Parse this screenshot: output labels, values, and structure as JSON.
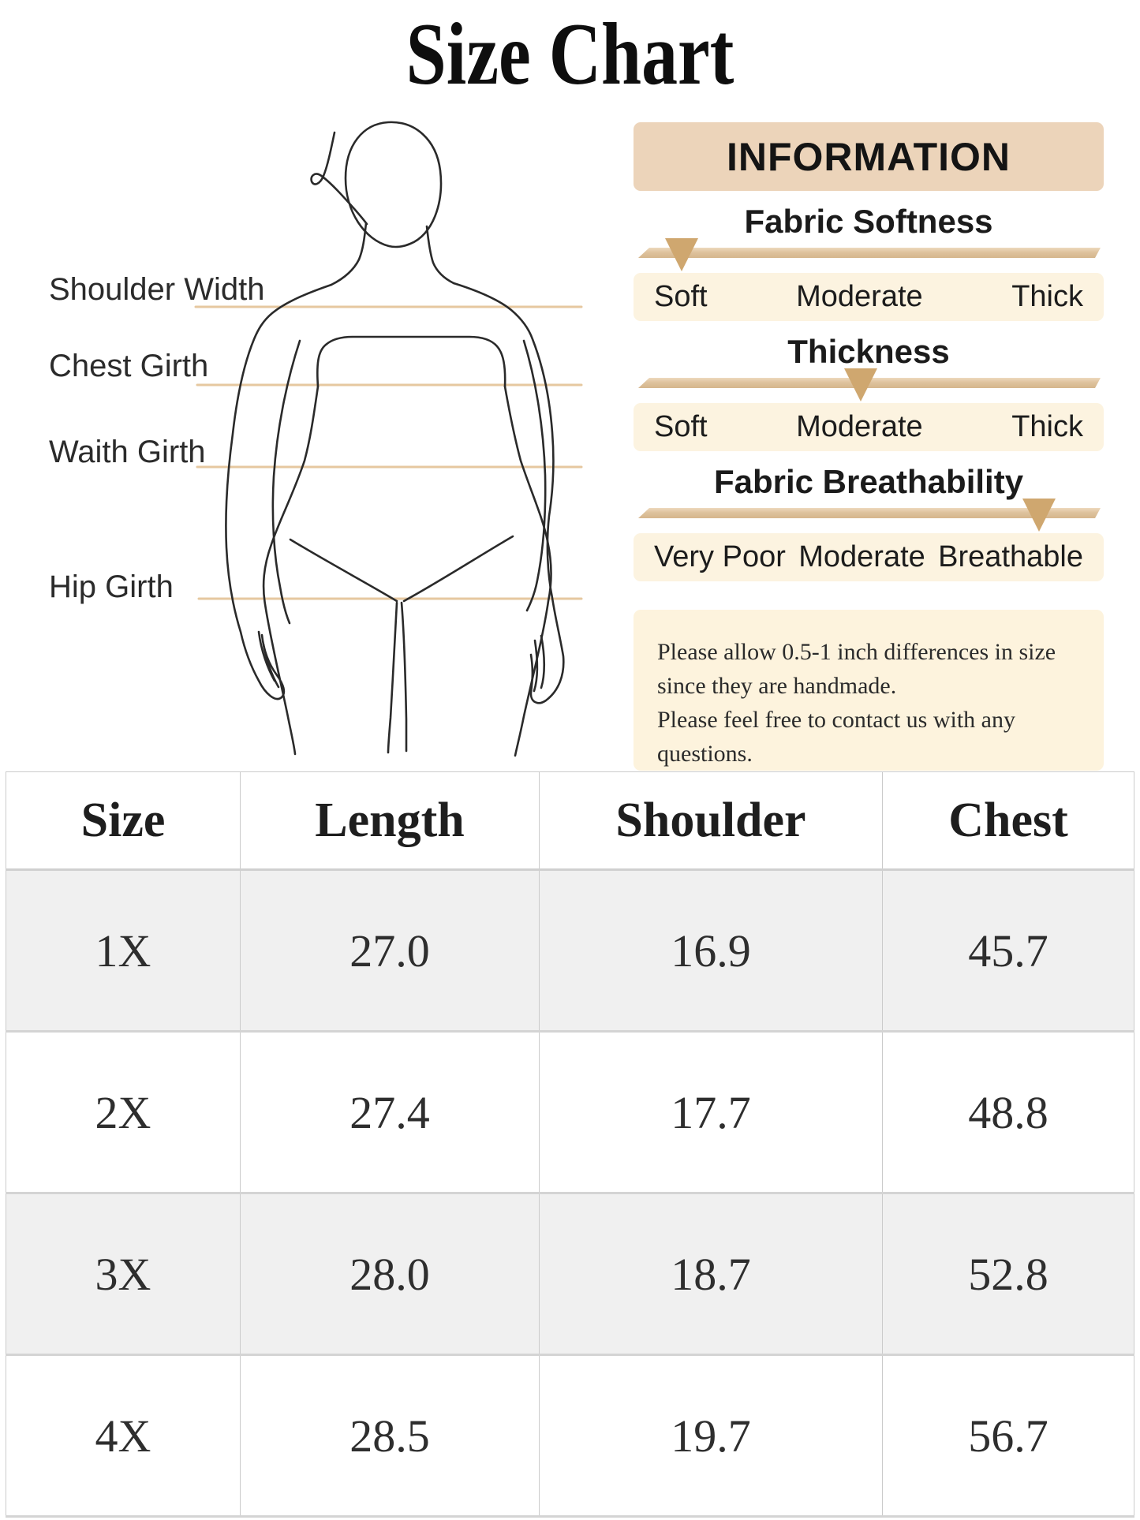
{
  "title": "Size Chart",
  "diagram": {
    "measurements": [
      "Shoulder Width",
      "Chest Girth",
      "Waith Girth",
      "Hip Girth"
    ]
  },
  "information": {
    "header": "INFORMATION",
    "metrics": [
      {
        "name": "Fabric Softness",
        "options": [
          "Soft",
          "Moderate",
          "Thick"
        ],
        "level_pct": 10.2
      },
      {
        "name": "Thickness",
        "options": [
          "Soft",
          "Moderate",
          "Thick"
        ],
        "level_pct": 48.3
      },
      {
        "name": "Fabric Breathability",
        "options": [
          "Very Poor",
          "Moderate",
          "Breathable"
        ],
        "level_pct": 86.2
      }
    ],
    "note_lines": [
      "Please allow 0.5-1 inch differences in size",
      "since they are handmade.",
      "Please feel free to contact us with any questions."
    ]
  },
  "size_table": {
    "columns": [
      "Size",
      "Length",
      "Shoulder",
      "Chest"
    ],
    "rows": [
      [
        "1X",
        "27.0",
        "16.9",
        "45.7"
      ],
      [
        "2X",
        "27.4",
        "17.7",
        "48.8"
      ],
      [
        "3X",
        "28.0",
        "18.7",
        "52.8"
      ],
      [
        "4X",
        "28.5",
        "19.7",
        "56.7"
      ]
    ]
  },
  "colors": {
    "panel_header_bg": "#ecd4ba",
    "option_row_bg": "#fcf3e0",
    "note_bg": "#fdf3dd",
    "slider_bar": "#dec29d",
    "slider_pointer": "#cfa76f",
    "measure_line": "#e6c8a0",
    "table_alt_row": "#f0f0f0",
    "table_border": "#cbcbcb"
  }
}
